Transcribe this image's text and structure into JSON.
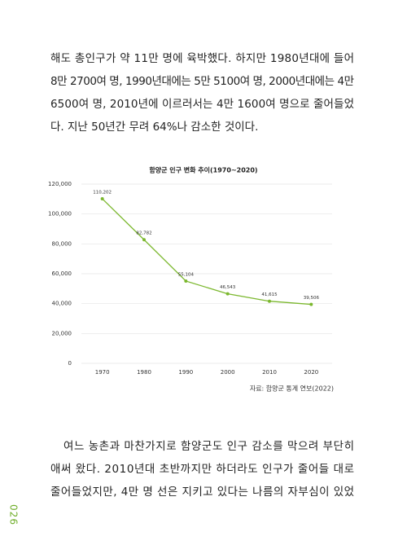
{
  "top_paragraph": [
    "해도 총인구가 약 11만 명에 육박했다. 하지만 1980년대에 들어",
    "8만 2700여 명, 1990년대에는 5만 5100여 명, 2000년대에는 4만",
    "6500여 명, 2010년에 이르러서는 4만 1600여 명으로 줄어들었",
    "다. 지난 50년간 무려 64%나 감소한 것이다."
  ],
  "chart_data": {
    "type": "line",
    "title": "함양군 인구 변화 추이(1970~2020)",
    "categories": [
      "1970",
      "1980",
      "1990",
      "2000",
      "2010",
      "2020"
    ],
    "values": [
      110202,
      82782,
      55104,
      46543,
      41615,
      39506
    ],
    "value_labels": [
      "110,202",
      "82,782",
      "55,104",
      "46,543",
      "41,615",
      "39,506"
    ],
    "color": "#7cb82f",
    "ylim": [
      0,
      120000
    ],
    "yticks": [
      0,
      {
        "value": 20000,
        "label": "20,000"
      },
      {
        "value": 40000,
        "label": "40,000"
      },
      {
        "value": 60000,
        "label": "60,000"
      },
      {
        "value": 80000,
        "label": "80,000"
      },
      {
        "value": 100000,
        "label": "100,000"
      },
      {
        "value": 120000,
        "label": "120,000"
      }
    ],
    "grid": true
  },
  "source": "자료: 함양군 통계 연보(2022)",
  "bottom_paragraph": [
    "여느 농촌과 마찬가지로 함양군도 인구 감소를 막으려 부단히",
    "애써 왔다. 2010년대 초반까지만 하더라도 인구가 줄어들 대로",
    "줄어들었지만, 4만 명 선은 지키고 있다는 나름의 자부심이 있었"
  ],
  "page_number": "026"
}
